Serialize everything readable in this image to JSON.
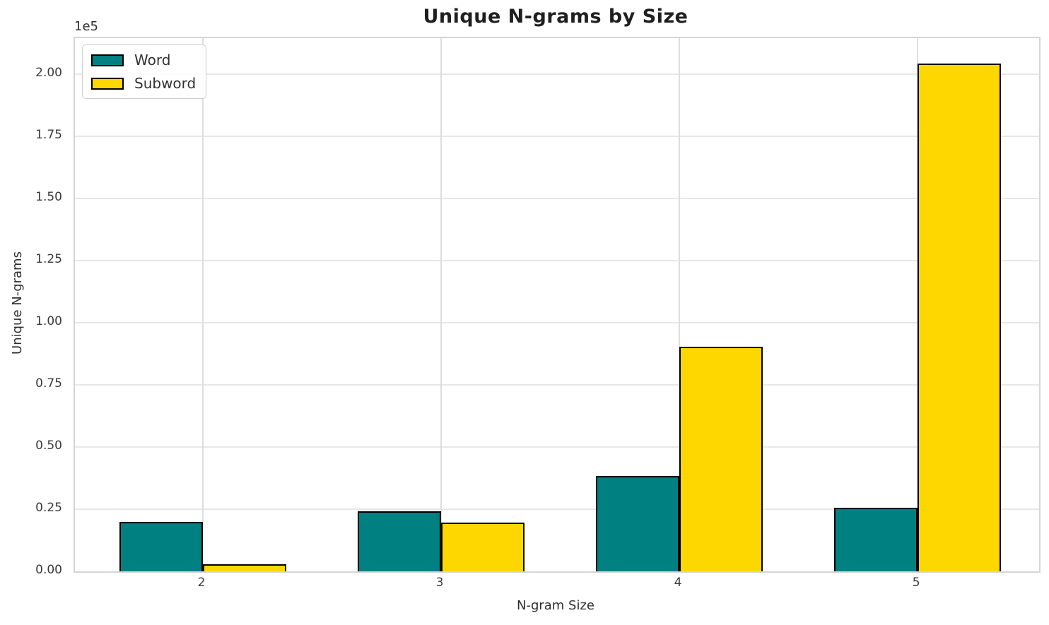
{
  "figure": {
    "title": "Unique N-grams by Size",
    "xlabel": "N-gram Size",
    "ylabel": "Unique N-grams",
    "offset_label": "1e5",
    "background_color": "#ffffff",
    "grid_color": "#e7e7e7",
    "spine_color": "#d5d5d5",
    "text_color": "#3a3a3a",
    "title_color": "#1f1f1f"
  },
  "legend": {
    "position": "upper left",
    "items": [
      {
        "label": "Word",
        "color": "#008080"
      },
      {
        "label": "Subword",
        "color": "#FFD700"
      }
    ]
  },
  "chart_data": {
    "type": "bar",
    "title": "Unique N-grams by Size",
    "xlabel": "N-gram Size",
    "ylabel": "Unique N-grams",
    "categories": [
      "2",
      "3",
      "4",
      "5"
    ],
    "series": [
      {
        "name": "Word",
        "color": "#008080",
        "values": [
          19600,
          23800,
          38000,
          25200
        ]
      },
      {
        "name": "Subword",
        "color": "#FFD700",
        "values": [
          2600,
          19400,
          90000,
          204000
        ]
      }
    ],
    "bar_edge_color": "#000000",
    "bar_width_units": 0.35,
    "ylim": [
      0,
      214400
    ],
    "xlim": [
      -0.537,
      3.51
    ],
    "yticks": [
      0,
      25000,
      50000,
      75000,
      100000,
      125000,
      150000,
      175000,
      200000
    ],
    "ytick_labels": [
      "0.00",
      "0.25",
      "0.50",
      "0.75",
      "1.00",
      "1.25",
      "1.50",
      "1.75",
      "2.00"
    ],
    "y_offset_text": "1e5",
    "grid": true,
    "legend_position": "upper left"
  }
}
